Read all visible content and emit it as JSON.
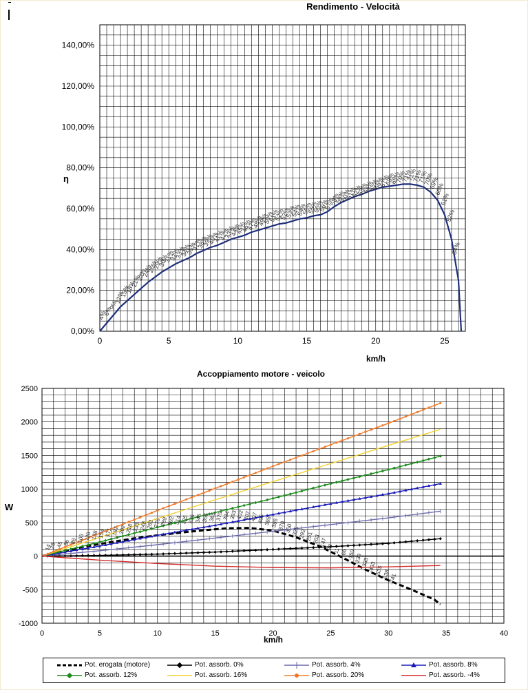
{
  "charts": {
    "chart1": {
      "type": "line",
      "title": "Rendimento - Velocità",
      "xlabel": "km/h",
      "ylabel": "η",
      "xlim": [
        0,
        26.5
      ],
      "ylim": [
        0,
        150
      ],
      "ytick_labels": [
        "0,00%",
        "20,00%",
        "40,00%",
        "60,00%",
        "80,00%",
        "100,00%",
        "120,00%",
        "140,00%"
      ],
      "xtick_labels": [
        "0",
        "5",
        "10",
        "15",
        "20",
        "25"
      ],
      "color": "#1f2f7a",
      "series": [
        {
          "x": [
            0,
            0.5,
            1,
            1.5,
            2,
            2.5,
            3,
            3.5,
            4,
            4.5,
            5,
            5.5,
            6,
            6.5,
            7,
            7.5,
            8,
            8.5,
            9,
            9.5,
            10,
            10.5,
            11,
            11.5,
            12,
            12.5,
            13,
            13.5,
            14,
            14.5,
            15,
            15.5,
            16,
            16.5,
            17,
            17.5,
            18,
            18.5,
            19,
            19.5,
            20,
            20.5,
            21,
            21.5,
            22,
            22.5,
            23,
            23.5,
            24,
            24.5,
            25,
            25.5,
            26,
            26.2
          ],
          "y": [
            0,
            4,
            8,
            12,
            15,
            18,
            21,
            24,
            26.5,
            29,
            31,
            33,
            34.5,
            36,
            38,
            39.5,
            41,
            42,
            43.5,
            45,
            46,
            47,
            48.5,
            49.5,
            50.5,
            51.5,
            52.5,
            53,
            54,
            55,
            55.5,
            56.5,
            57,
            58.5,
            61,
            63,
            64.5,
            66,
            67,
            68.5,
            69.5,
            70.5,
            71,
            71.5,
            72,
            72,
            71.5,
            70.5,
            68,
            64,
            57,
            45,
            25,
            0
          ]
        }
      ],
      "data_labels": [
        {
          "x": 0.2,
          "y": 4,
          "text": "4%"
        },
        {
          "x": 0.6,
          "y": 6,
          "text": "6%"
        },
        {
          "x": 1.0,
          "y": 9,
          "text": "9%"
        },
        {
          "x": 1.4,
          "y": 12,
          "text": "12%"
        },
        {
          "x": 1.8,
          "y": 15,
          "text": "15%"
        },
        {
          "x": 2.2,
          "y": 17,
          "text": "18%"
        },
        {
          "x": 2.6,
          "y": 20,
          "text": "21%"
        },
        {
          "x": 3.0,
          "y": 23,
          "text": "23%"
        },
        {
          "x": 3.4,
          "y": 25,
          "text": "24%"
        },
        {
          "x": 3.8,
          "y": 27,
          "text": "26%"
        },
        {
          "x": 4.2,
          "y": 29,
          "text": "29%"
        },
        {
          "x": 4.6,
          "y": 30,
          "text": "30%"
        },
        {
          "x": 5.0,
          "y": 32,
          "text": "31%"
        },
        {
          "x": 5.4,
          "y": 33,
          "text": "32%"
        },
        {
          "x": 5.8,
          "y": 34,
          "text": "33%"
        },
        {
          "x": 6.2,
          "y": 35,
          "text": "34%"
        },
        {
          "x": 6.6,
          "y": 36,
          "text": "35%"
        },
        {
          "x": 7.0,
          "y": 38,
          "text": "37%"
        },
        {
          "x": 7.4,
          "y": 39,
          "text": "38%"
        },
        {
          "x": 7.8,
          "y": 40,
          "text": "39%"
        },
        {
          "x": 8.2,
          "y": 41,
          "text": "40%"
        },
        {
          "x": 8.6,
          "y": 42,
          "text": "41%"
        },
        {
          "x": 9.0,
          "y": 43,
          "text": "42%"
        },
        {
          "x": 9.4,
          "y": 44,
          "text": "43%"
        },
        {
          "x": 9.8,
          "y": 45,
          "text": "44%"
        },
        {
          "x": 10.2,
          "y": 46,
          "text": "45%"
        },
        {
          "x": 10.6,
          "y": 47,
          "text": "46%"
        },
        {
          "x": 11.0,
          "y": 48,
          "text": "47%"
        },
        {
          "x": 11.4,
          "y": 49,
          "text": "48%"
        },
        {
          "x": 11.8,
          "y": 50,
          "text": "49%"
        },
        {
          "x": 12.2,
          "y": 51,
          "text": "50%"
        },
        {
          "x": 12.6,
          "y": 52,
          "text": "51%"
        },
        {
          "x": 13.0,
          "y": 52.5,
          "text": "52%"
        },
        {
          "x": 13.4,
          "y": 53,
          "text": "52%"
        },
        {
          "x": 13.8,
          "y": 54,
          "text": "53%"
        },
        {
          "x": 14.2,
          "y": 54.5,
          "text": "54%"
        },
        {
          "x": 14.6,
          "y": 55,
          "text": "54%"
        },
        {
          "x": 15.0,
          "y": 55.5,
          "text": "55%"
        },
        {
          "x": 15.4,
          "y": 56,
          "text": "55%"
        },
        {
          "x": 15.8,
          "y": 56.5,
          "text": "56%"
        },
        {
          "x": 16.2,
          "y": 57,
          "text": "56%"
        },
        {
          "x": 16.6,
          "y": 58,
          "text": "57%"
        },
        {
          "x": 17.0,
          "y": 60,
          "text": "58%"
        },
        {
          "x": 17.4,
          "y": 61,
          "text": "59%"
        },
        {
          "x": 17.8,
          "y": 62,
          "text": "60%"
        },
        {
          "x": 18.2,
          "y": 63,
          "text": "61%"
        },
        {
          "x": 18.6,
          "y": 64,
          "text": "62%"
        },
        {
          "x": 19.0,
          "y": 65,
          "text": "63%"
        },
        {
          "x": 19.4,
          "y": 66,
          "text": "64%"
        },
        {
          "x": 19.8,
          "y": 67,
          "text": "65%"
        },
        {
          "x": 20.2,
          "y": 68,
          "text": "66%"
        },
        {
          "x": 20.6,
          "y": 69,
          "text": "67%"
        },
        {
          "x": 21.0,
          "y": 70,
          "text": "68%"
        },
        {
          "x": 21.4,
          "y": 70.5,
          "text": "69%"
        },
        {
          "x": 21.8,
          "y": 71,
          "text": "70%"
        },
        {
          "x": 22.2,
          "y": 71.5,
          "text": "71%"
        },
        {
          "x": 22.6,
          "y": 72,
          "text": "71%"
        },
        {
          "x": 23.0,
          "y": 71.5,
          "text": "71%"
        },
        {
          "x": 23.4,
          "y": 71,
          "text": "71%"
        },
        {
          "x": 23.8,
          "y": 70,
          "text": "70%"
        },
        {
          "x": 24.2,
          "y": 68,
          "text": "69%"
        },
        {
          "x": 24.6,
          "y": 65,
          "text": "66%"
        },
        {
          "x": 25.0,
          "y": 60,
          "text": "61%"
        },
        {
          "x": 25.4,
          "y": 52,
          "text": "52%"
        },
        {
          "x": 25.8,
          "y": 36,
          "text": "34%"
        }
      ]
    },
    "chart2": {
      "type": "line",
      "title": "Accoppiamento motore - veicolo",
      "xlabel": "km/h",
      "ylabel": "W",
      "xlim": [
        0,
        40
      ],
      "ylim": [
        -1000,
        2500
      ],
      "xtick_labels": [
        "0",
        "5",
        "10",
        "15",
        "20",
        "25",
        "30",
        "35",
        "40"
      ],
      "ytick_labels": [
        "-1000",
        "-500",
        "0",
        "500",
        "1000",
        "1500",
        "2000",
        "2500"
      ],
      "series": [
        {
          "name": "Pot. erogata (motore)",
          "color": "#000000",
          "dash": true,
          "marker": "none",
          "x": [
            0,
            2,
            4,
            6,
            8,
            10,
            12,
            14,
            16,
            18,
            20,
            22,
            24,
            26,
            28,
            30,
            32,
            34,
            34.5
          ],
          "y": [
            0,
            80,
            150,
            210,
            265,
            310,
            350,
            385,
            415,
            420,
            380,
            280,
            150,
            -20,
            -200,
            -360,
            -500,
            -650,
            -720
          ]
        },
        {
          "name": "Pot. assorb. 0%",
          "color": "#000000",
          "dash": false,
          "marker": "diamond",
          "x": [
            0,
            5,
            10,
            15,
            20,
            25,
            30,
            34.5
          ],
          "y": [
            0,
            10,
            30,
            60,
            100,
            140,
            190,
            260
          ]
        },
        {
          "name": "Pot. assorb. 4%",
          "color": "#6a6aa8",
          "dash": false,
          "marker": "plus",
          "x": [
            0,
            5,
            10,
            15,
            20,
            25,
            30,
            34.5
          ],
          "y": [
            0,
            80,
            170,
            270,
            370,
            470,
            570,
            670
          ]
        },
        {
          "name": "Pot. assorb. 8%",
          "color": "#1a1ab8",
          "dash": false,
          "marker": "triangle",
          "x": [
            0,
            5,
            10,
            15,
            20,
            25,
            30,
            34.5
          ],
          "y": [
            0,
            150,
            310,
            460,
            620,
            780,
            930,
            1080
          ]
        },
        {
          "name": "Pot. assorb. 12%",
          "color": "#1e8a1e",
          "dash": false,
          "marker": "diamond",
          "x": [
            0,
            5,
            10,
            15,
            20,
            25,
            30,
            34.5
          ],
          "y": [
            0,
            210,
            430,
            650,
            860,
            1080,
            1290,
            1490
          ]
        },
        {
          "name": "Pot. assorb. 16%",
          "color": "#f2d22a",
          "dash": false,
          "marker": "none",
          "x": [
            0,
            5,
            10,
            15,
            20,
            25,
            30,
            34.5
          ],
          "y": [
            0,
            280,
            560,
            840,
            1110,
            1380,
            1650,
            1890
          ]
        },
        {
          "name": "Pot. assorb. 20%",
          "color": "#f07a2a",
          "dash": false,
          "marker": "circle",
          "x": [
            0,
            5,
            10,
            15,
            20,
            25,
            30,
            34.5
          ],
          "y": [
            0,
            340,
            680,
            1010,
            1340,
            1660,
            1980,
            2280
          ]
        },
        {
          "name": "Pot. assorb. -4%",
          "color": "#d42a2a",
          "dash": false,
          "marker": "none",
          "x": [
            0,
            5,
            10,
            15,
            20,
            25,
            30,
            34.5
          ],
          "y": [
            0,
            -60,
            -110,
            -150,
            -170,
            -175,
            -160,
            -140
          ]
        }
      ],
      "data_labels": [
        {
          "x": 0.6,
          "y": 40,
          "text": "14"
        },
        {
          "x": 1.0,
          "y": 60,
          "text": "28"
        },
        {
          "x": 1.6,
          "y": 80,
          "text": "45"
        },
        {
          "x": 2.2,
          "y": 110,
          "text": "66"
        },
        {
          "x": 2.8,
          "y": 130,
          "text": "88"
        },
        {
          "x": 3.4,
          "y": 150,
          "text": "105"
        },
        {
          "x": 4.0,
          "y": 180,
          "text": "120"
        },
        {
          "x": 4.6,
          "y": 200,
          "text": "138"
        },
        {
          "x": 5.2,
          "y": 220,
          "text": "154"
        },
        {
          "x": 5.8,
          "y": 240,
          "text": "171"
        },
        {
          "x": 6.4,
          "y": 260,
          "text": "187"
        },
        {
          "x": 7.0,
          "y": 280,
          "text": "202"
        },
        {
          "x": 7.6,
          "y": 300,
          "text": "218"
        },
        {
          "x": 8.2,
          "y": 320,
          "text": "233"
        },
        {
          "x": 8.8,
          "y": 340,
          "text": "248"
        },
        {
          "x": 9.4,
          "y": 360,
          "text": "262"
        },
        {
          "x": 10.0,
          "y": 380,
          "text": "276"
        },
        {
          "x": 10.6,
          "y": 400,
          "text": "289"
        },
        {
          "x": 11.2,
          "y": 410,
          "text": "302"
        },
        {
          "x": 11.8,
          "y": 420,
          "text": "314"
        },
        {
          "x": 12.4,
          "y": 430,
          "text": "325"
        },
        {
          "x": 13.0,
          "y": 440,
          "text": "336"
        },
        {
          "x": 13.6,
          "y": 450,
          "text": "346"
        },
        {
          "x": 14.2,
          "y": 460,
          "text": "356"
        },
        {
          "x": 14.8,
          "y": 470,
          "text": "365"
        },
        {
          "x": 15.4,
          "y": 480,
          "text": "375"
        },
        {
          "x": 16.0,
          "y": 490,
          "text": "384"
        },
        {
          "x": 16.6,
          "y": 500,
          "text": "393"
        },
        {
          "x": 17.2,
          "y": 500,
          "text": "402"
        },
        {
          "x": 17.8,
          "y": 490,
          "text": "407"
        },
        {
          "x": 18.4,
          "y": 470,
          "text": "407"
        },
        {
          "x": 19.0,
          "y": 440,
          "text": "405"
        },
        {
          "x": 19.6,
          "y": 410,
          "text": "398"
        },
        {
          "x": 20.2,
          "y": 380,
          "text": "386"
        },
        {
          "x": 20.8,
          "y": 340,
          "text": "370"
        },
        {
          "x": 21.4,
          "y": 300,
          "text": "350"
        },
        {
          "x": 22.0,
          "y": 260,
          "text": "325"
        },
        {
          "x": 22.6,
          "y": 220,
          "text": "292"
        },
        {
          "x": 23.2,
          "y": 180,
          "text": "251"
        },
        {
          "x": 23.8,
          "y": 140,
          "text": "203"
        },
        {
          "x": 24.4,
          "y": 90,
          "text": "147"
        },
        {
          "x": 25.0,
          "y": 40,
          "text": "83"
        },
        {
          "x": 25.6,
          "y": -10,
          "text": "11"
        },
        {
          "x": 26.2,
          "y": -60,
          "text": "-66"
        },
        {
          "x": 26.8,
          "y": -110,
          "text": "-150"
        },
        {
          "x": 27.4,
          "y": -170,
          "text": "-239"
        },
        {
          "x": 28.0,
          "y": -230,
          "text": "-333"
        },
        {
          "x": 28.6,
          "y": -290,
          "text": "-433"
        },
        {
          "x": 29.2,
          "y": -350,
          "text": "-535"
        },
        {
          "x": 29.8,
          "y": -410,
          "text": "-638"
        },
        {
          "x": 30.4,
          "y": -470,
          "text": "-741"
        }
      ]
    }
  },
  "legend": {
    "items": [
      "Pot. erogata (motore)",
      "Pot. assorb. 0%",
      "Pot. assorb. 4%",
      "Pot. assorb. 8%",
      "Pot. assorb. 12%",
      "Pot. assorb. 16%",
      "Pot. assorb. 20%",
      "Pot. assorb. -4%"
    ]
  }
}
